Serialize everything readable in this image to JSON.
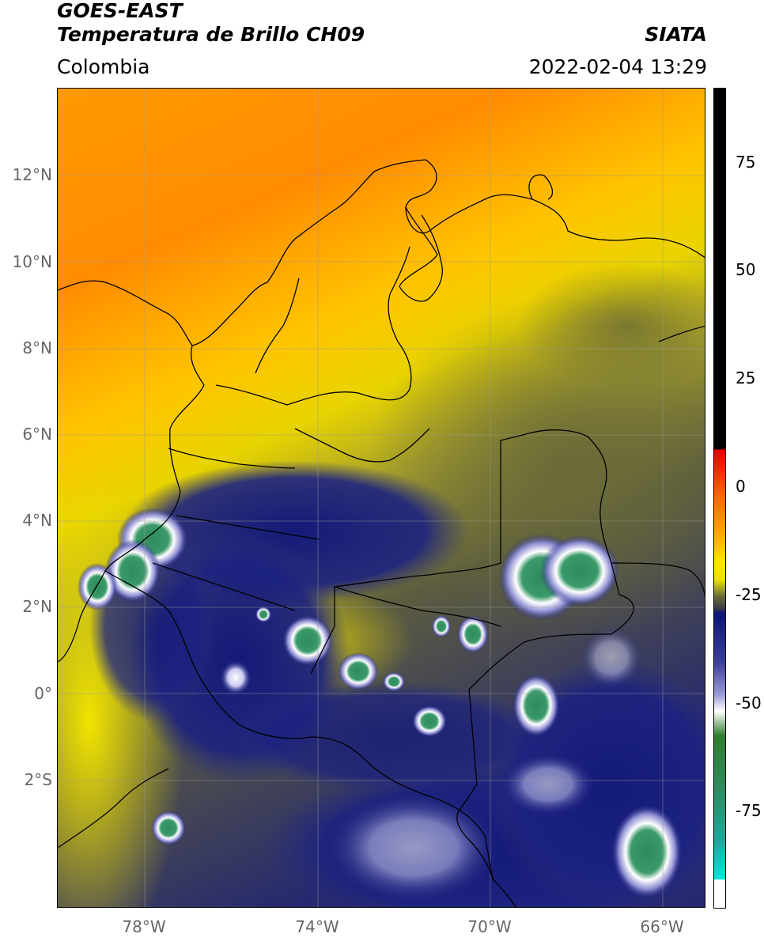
{
  "header": {
    "satellite": "GOES-EAST",
    "product": "Temperatura de Brillo CH09",
    "agency": "SIATA",
    "region": "Colombia",
    "timestamp": "2022-02-04 13:29"
  },
  "map": {
    "lat_ticks": [
      "12°N",
      "10°N",
      "8°N",
      "6°N",
      "4°N",
      "2°N",
      "0°",
      "2°S"
    ],
    "lon_ticks": [
      "78°W",
      "74°W",
      "70°W",
      "66°W"
    ],
    "grid": true
  },
  "colorbar": {
    "ticks": [
      "75",
      "50",
      "25",
      "0",
      "-25",
      "-50",
      "-75"
    ],
    "colors": {
      "warm": "#000000",
      "red": "#e10000",
      "orange": "#ff8c00",
      "yellow": "#ffe600",
      "olive": "#8a8a2a",
      "navy": "#141a78",
      "white": "#ffffff",
      "green": "#2f7d2f",
      "cyan": "#00e0d0"
    }
  }
}
